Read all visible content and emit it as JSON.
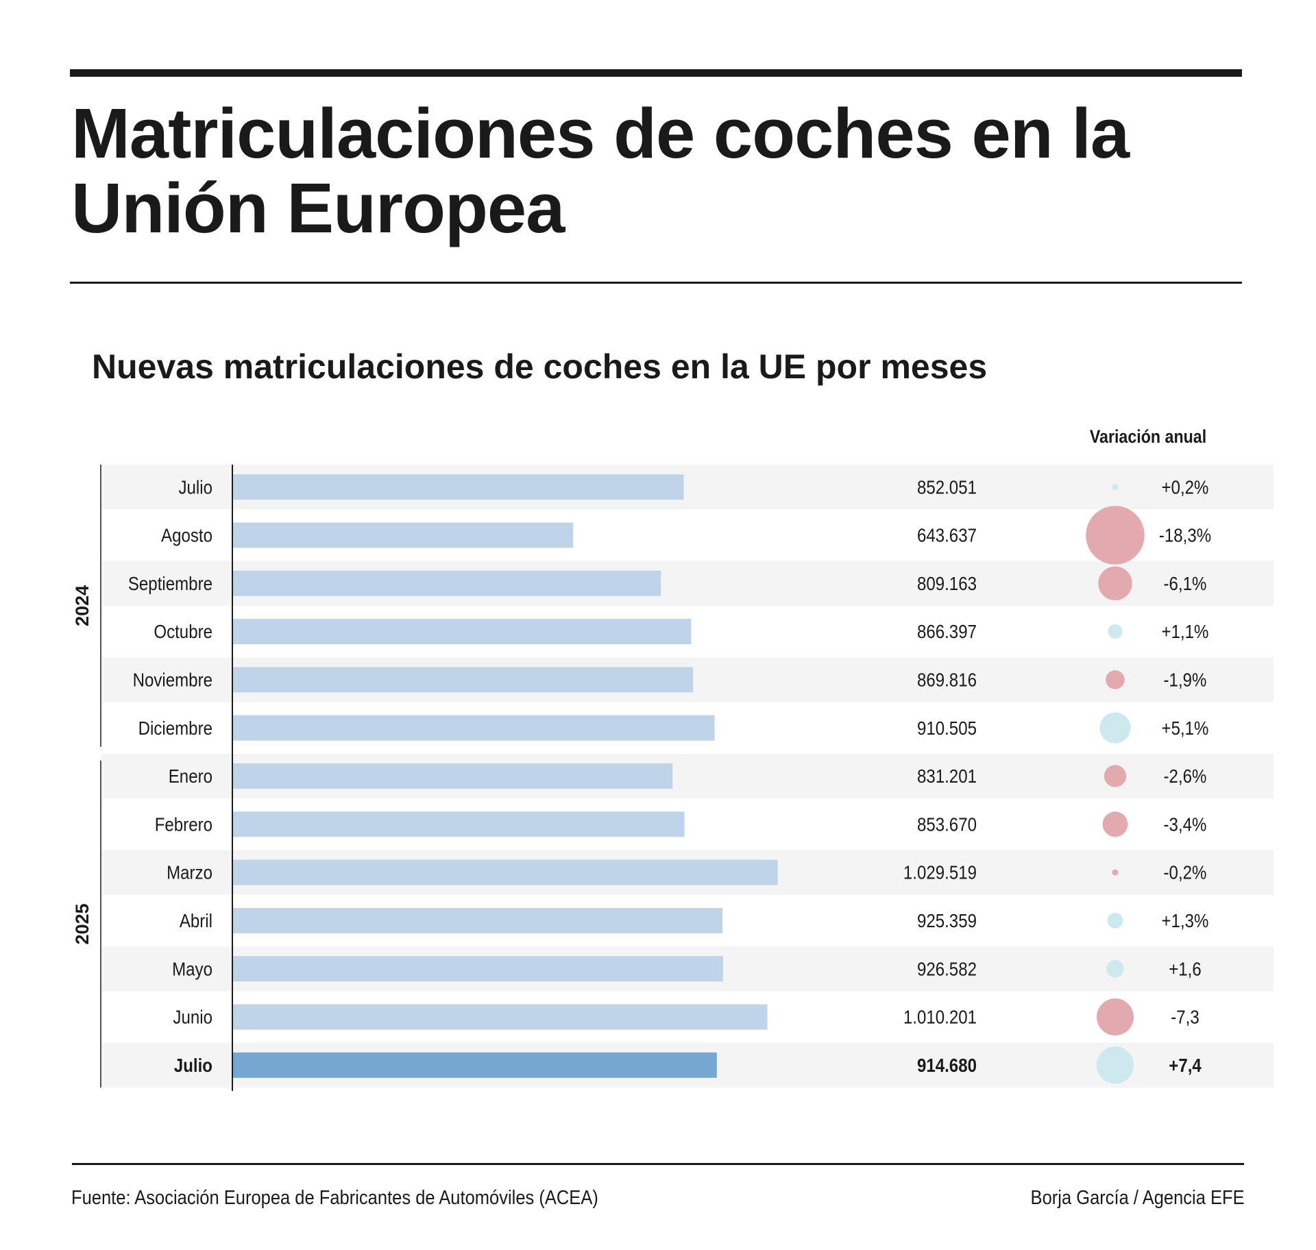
{
  "title": "Matriculaciones de coches en la Unión Europea",
  "chart_data": {
    "type": "bar",
    "orientation": "horizontal",
    "title": "Nuevas matriculaciones de coches en la UE por meses",
    "variation_header": "Variación anual",
    "xlim": [
      0,
      1100000
    ],
    "groups": [
      {
        "label": "2024",
        "count": 6
      },
      {
        "label": "2025",
        "count": 7
      }
    ],
    "categories": [
      "Julio",
      "Agosto",
      "Septiembre",
      "Octubre",
      "Noviembre",
      "Diciembre",
      "Enero",
      "Febrero",
      "Marzo",
      "Abril",
      "Mayo",
      "Junio",
      "Julio"
    ],
    "values": [
      852051,
      643637,
      809163,
      866397,
      869816,
      910505,
      831201,
      853670,
      1029519,
      925359,
      926582,
      1010201,
      914680
    ],
    "value_labels": [
      "852.051",
      "643.637",
      "809.163",
      "866.397",
      "869.816",
      "910.505",
      "831.201",
      "853.670",
      "1.029.519",
      "925.359",
      "926.582",
      "1.010.201",
      "914.680"
    ],
    "variation": [
      0.2,
      -18.3,
      -6.1,
      1.1,
      -1.9,
      5.1,
      -2.6,
      -3.4,
      -0.2,
      1.3,
      1.6,
      -7.3,
      7.4
    ],
    "variation_labels": [
      "+0,2%",
      "-18,3%",
      "-6,1%",
      "+1,1%",
      "-1,9%",
      "+5,1%",
      "-2,6%",
      "-3,4%",
      "-0,2%",
      "+1,3%",
      "+1,6",
      "-7,3",
      "+7,4"
    ],
    "highlight_index": 12,
    "colors": {
      "bar": "#bfd4e9",
      "bar_highlight": "#76a7d1",
      "positive": "#cde9ee",
      "negative": "#e2a9ae",
      "row_alt": "#f4f4f4"
    }
  },
  "footer": {
    "source": "Fuente: Asociación Europea de Fabricantes de Automóviles (ACEA)",
    "credit": "Borja García / Agencia EFE"
  }
}
